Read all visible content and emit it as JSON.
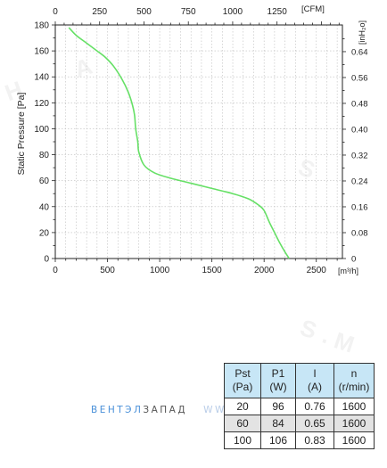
{
  "chart_data": {
    "type": "line",
    "x_bottom": {
      "unit": "[m³/h]",
      "range": [
        0,
        2750
      ],
      "ticks": [
        0,
        500,
        1000,
        1500,
        2000,
        2500
      ]
    },
    "x_top": {
      "unit": "[CFM]",
      "range": [
        0,
        1618.6
      ],
      "ticks": [
        0,
        250,
        500,
        750,
        1000,
        1250
      ]
    },
    "y_left": {
      "label": "Static Pressure [Pa]",
      "range": [
        0,
        180
      ],
      "ticks": [
        0,
        20,
        40,
        60,
        80,
        100,
        120,
        140,
        160,
        180
      ]
    },
    "y_right": {
      "unit": "[inH₂o]",
      "range": [
        0,
        0.7226
      ],
      "ticks": [
        "0",
        "0.08",
        "0.16",
        "0.24",
        "0.32",
        "0.40",
        "0.48",
        "0.56",
        "0.64"
      ]
    },
    "grid": true,
    "series": [
      {
        "color": "#66e066",
        "x": [
          130,
          200,
          300,
          400,
          480,
          560,
          640,
          700,
          740,
          760,
          770,
          790,
          800,
          850,
          950,
          1100,
          1300,
          1500,
          1700,
          1850,
          1950,
          2000,
          2050,
          2100,
          2150,
          2200,
          2240
        ],
        "y": [
          178,
          172,
          166,
          160,
          155,
          148,
          138,
          128,
          118,
          110,
          100,
          90,
          82,
          72,
          66,
          62,
          58,
          54,
          50,
          46,
          41,
          37,
          28,
          20,
          12,
          5,
          0
        ]
      }
    ]
  },
  "watermark": {
    "letters": [
      "H",
      "A",
      "S",
      "S",
      ".",
      "M"
    ],
    "color": "#f2f2f2"
  },
  "brand": {
    "part1": "ВЕНТЭЛ",
    "part2": "ЗАПАД",
    "part3": "WW"
  },
  "perf_table": {
    "headers": [
      {
        "top": "Pst",
        "bottom": "(Pa)"
      },
      {
        "top": "P1",
        "bottom": "(W)"
      },
      {
        "top": "I",
        "bottom": "(A)"
      },
      {
        "top": "n",
        "bottom": "(r/min)"
      }
    ],
    "rows": [
      [
        "20",
        "96",
        "0.76",
        "1600"
      ],
      [
        "60",
        "84",
        "0.65",
        "1600"
      ],
      [
        "100",
        "106",
        "0.83",
        "1600"
      ]
    ]
  }
}
